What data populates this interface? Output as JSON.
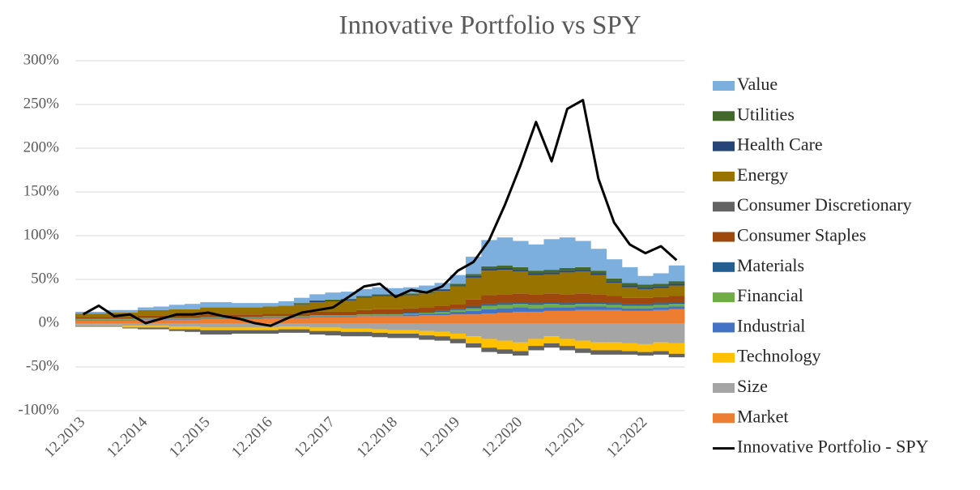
{
  "chart_data": {
    "type": "bar",
    "stacked": true,
    "title": "Innovative Portfolio vs SPY",
    "categories": [
      "12.2013",
      null,
      null,
      null,
      "12.2014",
      null,
      null,
      null,
      "12.2015",
      null,
      null,
      null,
      "12.2016",
      null,
      null,
      null,
      "12.2017",
      null,
      null,
      null,
      "12.2018",
      null,
      null,
      null,
      "12.2019",
      null,
      null,
      null,
      "12.2020",
      null,
      null,
      null,
      "12.2021",
      null,
      null,
      null,
      "12.2022",
      null,
      null
    ],
    "ylim": [
      -100,
      300
    ],
    "yticks": [
      {
        "value": -100,
        "label": "-100%"
      },
      {
        "value": -50,
        "label": "-50%"
      },
      {
        "value": 0,
        "label": "0%"
      },
      {
        "value": 50,
        "label": "50%"
      },
      {
        "value": 100,
        "label": "100%"
      },
      {
        "value": 150,
        "label": "150%"
      },
      {
        "value": 200,
        "label": "200%"
      },
      {
        "value": 250,
        "label": "250%"
      },
      {
        "value": 300,
        "label": "300%"
      }
    ],
    "grid": true,
    "legend": "right",
    "series": [
      {
        "name": "Market",
        "color": "#ed7d31",
        "values": [
          3,
          3,
          3,
          3,
          4,
          4,
          4,
          4,
          5,
          5,
          5,
          5,
          6,
          6,
          6,
          7,
          7,
          7,
          8,
          8,
          8,
          8,
          9,
          9,
          10,
          10,
          11,
          12,
          13,
          13,
          14,
          14,
          15,
          15,
          15,
          14,
          14,
          15,
          16
        ]
      },
      {
        "name": "Size",
        "color": "#a5a5a5",
        "values": [
          -2,
          -2,
          -2,
          -3,
          -3,
          -3,
          -4,
          -4,
          -5,
          -5,
          -5,
          -5,
          -5,
          -4,
          -4,
          -5,
          -5,
          -6,
          -6,
          -7,
          -8,
          -8,
          -9,
          -10,
          -12,
          -15,
          -18,
          -20,
          -22,
          -18,
          -15,
          -18,
          -20,
          -22,
          -22,
          -23,
          -24,
          -22,
          -23
        ]
      },
      {
        "name": "Technology",
        "color": "#ffc000",
        "values": [
          -1,
          -1,
          -1,
          -2,
          -2,
          -2,
          -3,
          -3,
          -3,
          -3,
          -3,
          -3,
          -3,
          -3,
          -3,
          -4,
          -4,
          -4,
          -4,
          -4,
          -4,
          -4,
          -5,
          -5,
          -6,
          -8,
          -10,
          -10,
          -10,
          -8,
          -8,
          -8,
          -9,
          -9,
          -9,
          -9,
          -9,
          -10,
          -12
        ]
      },
      {
        "name": "Industrial",
        "color": "#4472c4",
        "values": [
          1,
          1,
          1,
          1,
          1,
          1,
          1,
          1,
          1,
          1,
          1,
          1,
          1,
          1,
          1,
          1,
          1,
          1,
          1,
          1,
          1,
          2,
          2,
          2,
          3,
          4,
          5,
          5,
          5,
          4,
          4,
          4,
          4,
          4,
          3,
          3,
          3,
          3,
          3
        ]
      },
      {
        "name": "Financial",
        "color": "#70ad47",
        "values": [
          1,
          1,
          1,
          1,
          1,
          1,
          1,
          1,
          1,
          1,
          1,
          1,
          1,
          1,
          1,
          1,
          1,
          1,
          1,
          1,
          1,
          1,
          1,
          2,
          2,
          3,
          4,
          4,
          4,
          4,
          4,
          3,
          3,
          3,
          3,
          3,
          3,
          3,
          3
        ]
      },
      {
        "name": "Materials",
        "color": "#255e91",
        "values": [
          0,
          0,
          0,
          0,
          0,
          0,
          0,
          0,
          0,
          0,
          0,
          0,
          0,
          0,
          0,
          0,
          0,
          0,
          0,
          1,
          1,
          1,
          1,
          1,
          1,
          2,
          2,
          2,
          2,
          2,
          2,
          2,
          2,
          2,
          2,
          2,
          2,
          2,
          2
        ]
      },
      {
        "name": "Consumer Staples",
        "color": "#9e480e",
        "values": [
          2,
          2,
          2,
          2,
          3,
          3,
          3,
          3,
          3,
          3,
          3,
          3,
          3,
          3,
          3,
          4,
          4,
          4,
          5,
          5,
          5,
          5,
          5,
          6,
          6,
          8,
          10,
          10,
          10,
          10,
          10,
          10,
          10,
          9,
          8,
          7,
          7,
          7,
          7
        ]
      },
      {
        "name": "Consumer Discretionary",
        "color": "#636363",
        "values": [
          -1,
          -1,
          -1,
          -1,
          -2,
          -2,
          -2,
          -3,
          -5,
          -5,
          -4,
          -4,
          -4,
          -4,
          -4,
          -4,
          -5,
          -5,
          -5,
          -5,
          -5,
          -5,
          -5,
          -5,
          -5,
          -5,
          -5,
          -5,
          -5,
          -5,
          -5,
          -5,
          -5,
          -5,
          -5,
          -4,
          -4,
          -4,
          -4
        ]
      },
      {
        "name": "Energy",
        "color": "#997300",
        "values": [
          4,
          4,
          5,
          5,
          6,
          6,
          7,
          7,
          8,
          8,
          8,
          8,
          8,
          9,
          10,
          11,
          12,
          13,
          14,
          15,
          15,
          15,
          16,
          17,
          20,
          25,
          28,
          28,
          25,
          22,
          22,
          25,
          25,
          22,
          15,
          12,
          10,
          10,
          12
        ]
      },
      {
        "name": "Health Care",
        "color": "#264478",
        "values": [
          0,
          0,
          0,
          0,
          0,
          0,
          0,
          0,
          0,
          0,
          0,
          0,
          0,
          0,
          1,
          1,
          1,
          1,
          1,
          1,
          1,
          1,
          1,
          1,
          1,
          2,
          2,
          2,
          2,
          2,
          2,
          2,
          2,
          2,
          2,
          2,
          2,
          2,
          2
        ]
      },
      {
        "name": "Utilities",
        "color": "#43682b",
        "values": [
          0,
          0,
          0,
          0,
          0,
          0,
          0,
          0,
          0,
          0,
          0,
          0,
          0,
          0,
          1,
          1,
          1,
          1,
          1,
          1,
          1,
          1,
          1,
          1,
          2,
          2,
          3,
          3,
          3,
          3,
          3,
          3,
          3,
          3,
          3,
          3,
          3,
          3,
          3
        ]
      },
      {
        "name": "Value",
        "color": "#7cafdd",
        "values": [
          2,
          2,
          3,
          3,
          3,
          4,
          5,
          6,
          6,
          6,
          5,
          5,
          4,
          5,
          6,
          7,
          8,
          8,
          8,
          8,
          7,
          7,
          7,
          7,
          10,
          20,
          30,
          32,
          30,
          30,
          35,
          35,
          30,
          25,
          22,
          18,
          10,
          12,
          18
        ]
      },
      {
        "name": "Innovative Portfolio - SPY",
        "type": "line",
        "color": "#000000",
        "values": [
          10,
          20,
          8,
          10,
          0,
          5,
          10,
          10,
          12,
          8,
          5,
          0,
          -3,
          5,
          12,
          15,
          18,
          30,
          42,
          45,
          30,
          38,
          35,
          42,
          60,
          70,
          95,
          135,
          180,
          230,
          185,
          245,
          255,
          165,
          115,
          90,
          80,
          88,
          72
        ]
      }
    ]
  }
}
